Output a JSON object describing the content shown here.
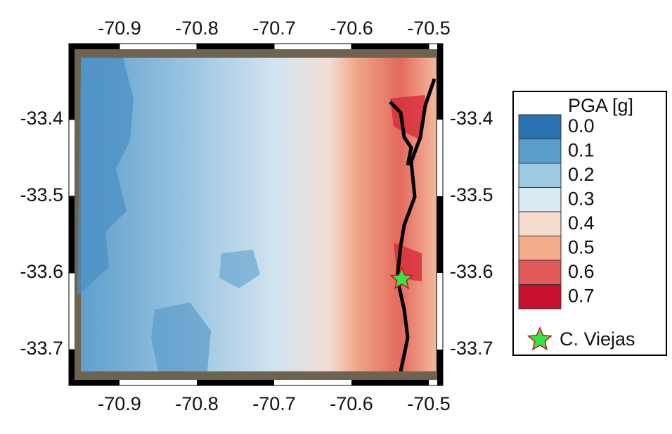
{
  "map": {
    "xticks": [
      -70.9,
      -70.8,
      -70.7,
      -70.6,
      -70.5
    ],
    "yticks": [
      -33.4,
      -33.5,
      -33.6,
      -33.7
    ],
    "legend": {
      "title": "PGA [g]",
      "levels": [
        {
          "value": 0,
          "label": "0.0"
        },
        0.1,
        0.2,
        0.3,
        0.4,
        0.5,
        0.6,
        0.7
      ],
      "colors": [
        "#2a72b2",
        "#5a9fcc",
        "#9ecae1",
        "#dbe9f3",
        "#f6dccf",
        "#f4ab8a",
        "#e05a5a",
        "#c8102e"
      ]
    },
    "marker": {
      "label": "C. Viejas",
      "lon": -70.535,
      "lat": -33.608,
      "color": "#2ee84a"
    }
  }
}
